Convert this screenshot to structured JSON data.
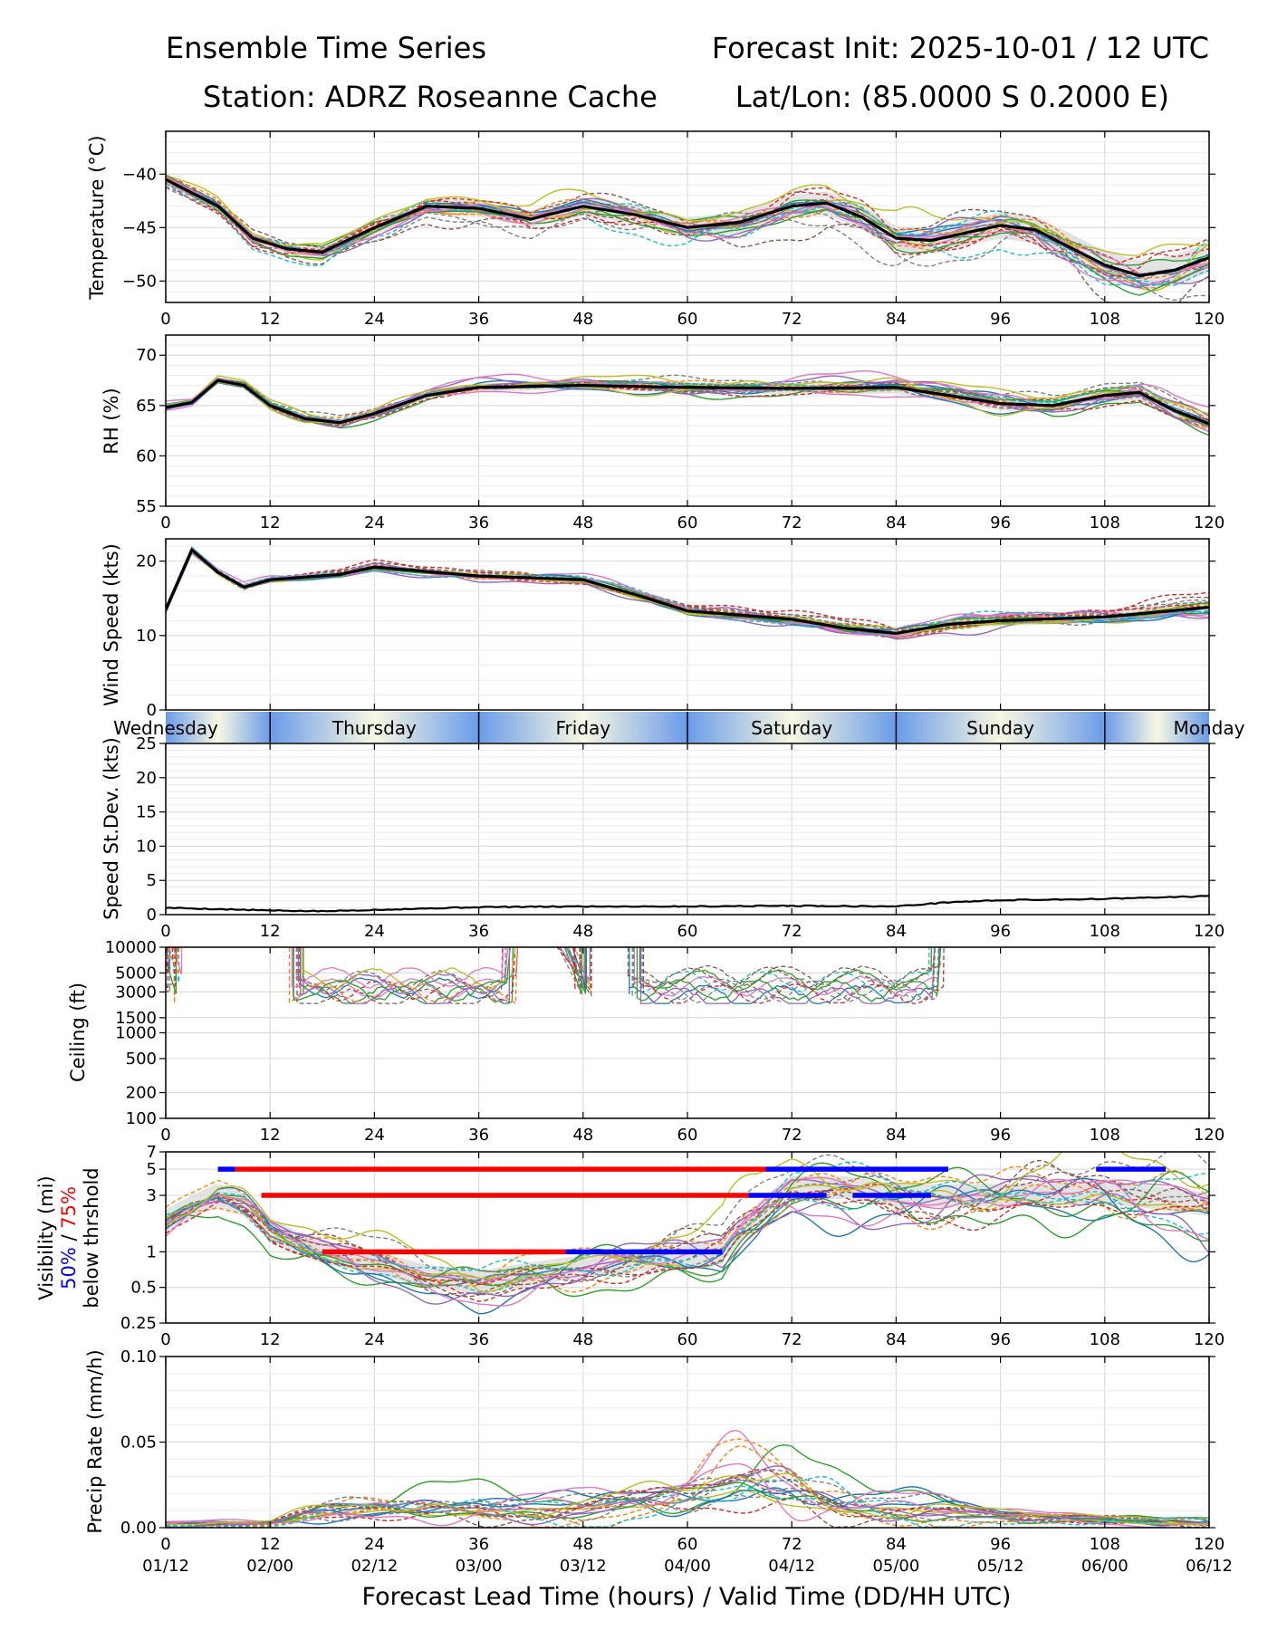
{
  "header": {
    "left_line1": "Ensemble Time Series",
    "right_line1": "Forecast Init: 2025-10-01 / 12 UTC",
    "left_line2": "Station: ADRZ Roseanne Cache",
    "right_line2": "Lat/Lon: (85.0000 S 0.2000 E)"
  },
  "colors": {
    "palette": [
      "#1f77b4",
      "#ff7f0e",
      "#2ca02c",
      "#d62728",
      "#9467bd",
      "#8c564b",
      "#e377c2",
      "#7f7f7f",
      "#bcbd22",
      "#17becf"
    ],
    "mean": "#000000",
    "band": "#d9d9d9",
    "vis50": "#0000ff",
    "vis75": "#ff0000"
  },
  "x_axis": {
    "label": "Forecast Lead Time (hours) / Valid Time (DD/HH UTC)",
    "lead_ticks": [
      "0",
      "12",
      "24",
      "36",
      "48",
      "60",
      "72",
      "84",
      "96",
      "108",
      "120"
    ],
    "valid_ticks": [
      "01/12",
      "02/00",
      "02/12",
      "03/00",
      "03/12",
      "04/00",
      "04/12",
      "05/00",
      "05/12",
      "06/00",
      "06/12"
    ],
    "xlim": [
      0,
      120
    ]
  },
  "day_strip": [
    "Wednesday",
    "Thursday",
    "Friday",
    "Saturday",
    "Sunday",
    "Monday"
  ],
  "vis_label": {
    "line1": "Visibility (mi)",
    "pct50": "50%",
    "slash": " / ",
    "pct75": "75%",
    "line3": "below thrshold"
  },
  "chart_data": [
    {
      "id": "temperature",
      "type": "line",
      "ylabel": "Temperature (°C)",
      "ylim": [
        -52,
        -36
      ],
      "yticks": [
        -50,
        -45,
        -40
      ],
      "ytick_labels": [
        "−50",
        "−45",
        "−40"
      ],
      "members": 20,
      "spread": 2.2,
      "seed": 11,
      "mean": [
        [
          0,
          -40.5
        ],
        [
          6,
          -43
        ],
        [
          10,
          -46
        ],
        [
          14,
          -47
        ],
        [
          18,
          -47.3
        ],
        [
          24,
          -45
        ],
        [
          30,
          -43
        ],
        [
          36,
          -43.2
        ],
        [
          42,
          -44.2
        ],
        [
          48,
          -43
        ],
        [
          54,
          -43.8
        ],
        [
          60,
          -45
        ],
        [
          66,
          -44.5
        ],
        [
          72,
          -43
        ],
        [
          76,
          -42.7
        ],
        [
          80,
          -44
        ],
        [
          84,
          -46
        ],
        [
          88,
          -46.2
        ],
        [
          96,
          -44.8
        ],
        [
          100,
          -45.2
        ],
        [
          108,
          -48.5
        ],
        [
          112,
          -49.5
        ],
        [
          116,
          -49
        ],
        [
          120,
          -47.8
        ]
      ]
    },
    {
      "id": "rh",
      "type": "line",
      "ylabel": "RH (%)",
      "ylim": [
        55,
        72
      ],
      "yticks": [
        55,
        60,
        65,
        70
      ],
      "ytick_labels": [
        "55",
        "60",
        "65",
        "70"
      ],
      "members": 20,
      "spread": 1.2,
      "seed": 23,
      "mean": [
        [
          0,
          64.8
        ],
        [
          3,
          65.3
        ],
        [
          6,
          67.5
        ],
        [
          9,
          67
        ],
        [
          12,
          65
        ],
        [
          16,
          63.7
        ],
        [
          20,
          63.3
        ],
        [
          24,
          64.2
        ],
        [
          30,
          66
        ],
        [
          36,
          66.8
        ],
        [
          48,
          67
        ],
        [
          60,
          66.8
        ],
        [
          72,
          66.7
        ],
        [
          84,
          66.8
        ],
        [
          90,
          66
        ],
        [
          96,
          65.2
        ],
        [
          102,
          65
        ],
        [
          108,
          66
        ],
        [
          112,
          66.3
        ],
        [
          116,
          64.5
        ],
        [
          120,
          63.2
        ]
      ]
    },
    {
      "id": "wind",
      "type": "line",
      "ylabel": "Wind Speed (kts)",
      "ylim": [
        0,
        23
      ],
      "yticks": [
        0,
        10,
        20
      ],
      "ytick_labels": [
        "0",
        "10",
        "20"
      ],
      "members": 20,
      "spread": 1.3,
      "seed": 37,
      "mean": [
        [
          0,
          13.5
        ],
        [
          3,
          21.5
        ],
        [
          6,
          18.5
        ],
        [
          9,
          16.5
        ],
        [
          12,
          17.5
        ],
        [
          20,
          18.2
        ],
        [
          24,
          19.2
        ],
        [
          36,
          18
        ],
        [
          48,
          17.5
        ],
        [
          54,
          15.5
        ],
        [
          60,
          13.3
        ],
        [
          72,
          12.2
        ],
        [
          78,
          11
        ],
        [
          84,
          10.3
        ],
        [
          90,
          11.5
        ],
        [
          96,
          12
        ],
        [
          108,
          12.5
        ],
        [
          120,
          13.8
        ]
      ]
    },
    {
      "id": "speed_sd",
      "type": "line",
      "ylabel": "Speed St.Dev. (kts)",
      "ylim": [
        0,
        25
      ],
      "yticks": [
        0,
        5,
        10,
        15,
        20,
        25
      ],
      "ytick_labels": [
        "0",
        "5",
        "10",
        "15",
        "20",
        "25"
      ],
      "members": 0,
      "spread": 0,
      "seed": 0,
      "mean": [
        [
          0,
          1
        ],
        [
          6,
          0.8
        ],
        [
          12,
          0.6
        ],
        [
          18,
          0.5
        ],
        [
          24,
          0.7
        ],
        [
          36,
          1.1
        ],
        [
          48,
          1.2
        ],
        [
          60,
          1.2
        ],
        [
          72,
          1.3
        ],
        [
          84,
          1.2
        ],
        [
          90,
          1.8
        ],
        [
          96,
          2.1
        ],
        [
          108,
          2.3
        ],
        [
          120,
          2.7
        ]
      ]
    },
    {
      "id": "ceiling",
      "type": "line",
      "ylabel": "Ceiling (ft)",
      "scale": "log",
      "ylim": [
        100,
        10000
      ],
      "yticks": [
        100,
        200,
        500,
        1000,
        1500,
        3000,
        5000,
        10000
      ],
      "ytick_labels": [
        "100",
        "200",
        "500",
        "1000",
        "1500",
        "3000",
        "5000",
        "10000"
      ],
      "members": 18,
      "seed": 51,
      "windows": [
        [
          0,
          2
        ],
        [
          14,
          41
        ],
        [
          47,
          48
        ],
        [
          53,
          90
        ]
      ]
    },
    {
      "id": "visibility",
      "type": "line",
      "ylabel": "Visibility (mi)",
      "scale": "log",
      "ylim": [
        0.25,
        7
      ],
      "yticks": [
        0.25,
        0.5,
        1,
        3,
        5,
        7
      ],
      "ytick_labels": [
        "0.25",
        "0.5",
        "1",
        "3",
        "5",
        "7"
      ],
      "members": 20,
      "spread": 0.35,
      "seed": 67,
      "mean": [
        [
          0,
          1.8
        ],
        [
          6,
          3
        ],
        [
          9,
          2.5
        ],
        [
          12,
          1.5
        ],
        [
          15,
          1.2
        ],
        [
          18,
          1
        ],
        [
          24,
          0.8
        ],
        [
          30,
          0.62
        ],
        [
          36,
          0.55
        ],
        [
          42,
          0.65
        ],
        [
          48,
          0.75
        ],
        [
          54,
          0.85
        ],
        [
          60,
          0.9
        ],
        [
          64,
          1
        ],
        [
          68,
          2
        ],
        [
          72,
          3.5
        ],
        [
          78,
          3.5
        ],
        [
          84,
          3
        ],
        [
          96,
          3
        ],
        [
          108,
          3.2
        ],
        [
          120,
          2.5
        ]
      ],
      "threshold_bars": [
        {
          "level": 5,
          "segments": [
            {
              "x": [
                6,
                8
              ],
              "pct": 50
            },
            {
              "x": [
                8,
                69
              ],
              "pct": 75
            },
            {
              "x": [
                69,
                90
              ],
              "pct": 50
            },
            {
              "x": [
                107,
                115
              ],
              "pct": 50
            }
          ]
        },
        {
          "level": 3,
          "segments": [
            {
              "x": [
                11,
                67
              ],
              "pct": 75
            },
            {
              "x": [
                67,
                76
              ],
              "pct": 50
            },
            {
              "x": [
                79,
                88
              ],
              "pct": 50
            }
          ]
        },
        {
          "level": 1,
          "segments": [
            {
              "x": [
                18,
                46
              ],
              "pct": 75
            },
            {
              "x": [
                46,
                64
              ],
              "pct": 50
            }
          ]
        }
      ]
    },
    {
      "id": "precip",
      "type": "line",
      "ylabel": "Precip Rate (mm/h)",
      "ylim": [
        0,
        0.1
      ],
      "yticks": [
        0,
        0.05,
        0.1
      ],
      "ytick_labels": [
        "0.00",
        "0.05",
        "0.10"
      ],
      "members": 20,
      "seed": 83,
      "mean": [
        [
          0,
          0.002
        ],
        [
          12,
          0.002
        ],
        [
          18,
          0.008
        ],
        [
          24,
          0.011
        ],
        [
          36,
          0.012
        ],
        [
          48,
          0.01
        ],
        [
          60,
          0.015
        ],
        [
          66,
          0.022
        ],
        [
          72,
          0.022
        ],
        [
          78,
          0.015
        ],
        [
          84,
          0.012
        ],
        [
          96,
          0.006
        ],
        [
          108,
          0.004
        ],
        [
          120,
          0.003
        ]
      ]
    }
  ]
}
